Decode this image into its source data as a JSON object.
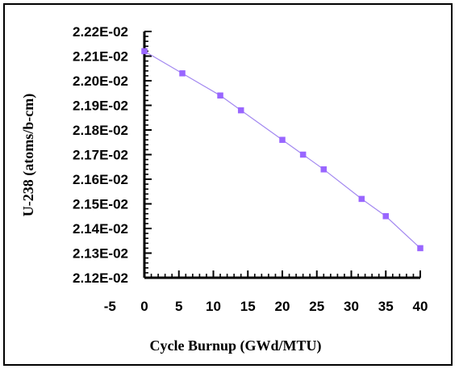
{
  "chart_data": {
    "type": "scatter",
    "title": "",
    "xlabel": "Cycle Burnup (GWd/MTU)",
    "ylabel": "U-238 (atoms/b-cm)",
    "xlim": [
      -5,
      40
    ],
    "ylim": [
      0.0212,
      0.0222
    ],
    "x_ticks": [
      "-5",
      "0",
      "5",
      "10",
      "15",
      "20",
      "25",
      "30",
      "35",
      "40"
    ],
    "x_tick_values": [
      -5,
      0,
      5,
      10,
      15,
      20,
      25,
      30,
      35,
      40
    ],
    "y_ticks": [
      "2.12E-02",
      "2.13E-02",
      "2.14E-02",
      "2.15E-02",
      "2.16E-02",
      "2.17E-02",
      "2.18E-02",
      "2.19E-02",
      "2.20E-02",
      "2.21E-02",
      "2.22E-02"
    ],
    "y_tick_values": [
      0.0212,
      0.0213,
      0.0214,
      0.0215,
      0.0216,
      0.0217,
      0.0218,
      0.0219,
      0.022,
      0.0221,
      0.0222
    ],
    "grid": false,
    "legend": "none",
    "series": [
      {
        "color": "#9966ff",
        "line_color": "#a287f0",
        "marker": "square",
        "x": [
          0,
          5.5,
          11,
          14,
          20,
          23,
          26,
          31.5,
          35,
          40
        ],
        "y": [
          0.02212,
          0.02203,
          0.02194,
          0.02188,
          0.02176,
          0.0217,
          0.02164,
          0.02152,
          0.02145,
          0.02132
        ]
      }
    ]
  }
}
